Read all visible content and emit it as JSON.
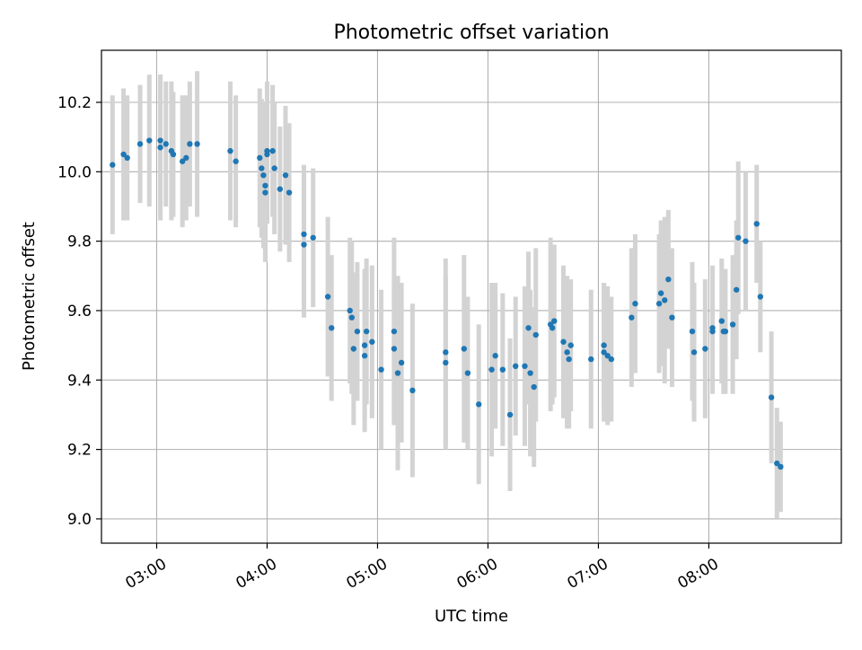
{
  "chart_data": {
    "type": "scatter",
    "title": "Photometric offset variation",
    "xlabel": "UTC time",
    "ylabel": "Photometric offset",
    "x_axis_kind": "time (HH:MM)",
    "xlim": [
      "02:30",
      "09:12"
    ],
    "ylim": [
      8.93,
      10.35
    ],
    "x_ticks": [
      "03:00",
      "04:00",
      "05:00",
      "06:00",
      "07:00",
      "08:00"
    ],
    "y_ticks": [
      "9.0",
      "9.2",
      "9.4",
      "9.6",
      "9.8",
      "10.0",
      "10.2"
    ],
    "grid": true,
    "legend": "none",
    "colors": {
      "point": "#1f77b4",
      "error_bar": "#d3d3d3",
      "grid": "#b0b0b0"
    },
    "series": [
      {
        "points": [
          {
            "x": "02:36",
            "y": 10.02,
            "err": 0.2
          },
          {
            "x": "02:42",
            "y": 10.05,
            "err": 0.19
          },
          {
            "x": "02:44",
            "y": 10.04,
            "err": 0.18
          },
          {
            "x": "02:51",
            "y": 10.08,
            "err": 0.17
          },
          {
            "x": "02:56",
            "y": 10.09,
            "err": 0.19
          },
          {
            "x": "03:02",
            "y": 10.07,
            "err": 0.21
          },
          {
            "x": "03:02",
            "y": 10.09,
            "err": 0.19
          },
          {
            "x": "03:05",
            "y": 10.08,
            "err": 0.18
          },
          {
            "x": "03:08",
            "y": 10.06,
            "err": 0.2
          },
          {
            "x": "03:09",
            "y": 10.05,
            "err": 0.18
          },
          {
            "x": "03:14",
            "y": 10.03,
            "err": 0.19
          },
          {
            "x": "03:16",
            "y": 10.04,
            "err": 0.18
          },
          {
            "x": "03:18",
            "y": 10.08,
            "err": 0.18
          },
          {
            "x": "03:22",
            "y": 10.08,
            "err": 0.21
          },
          {
            "x": "03:40",
            "y": 10.06,
            "err": 0.2
          },
          {
            "x": "03:43",
            "y": 10.03,
            "err": 0.19
          },
          {
            "x": "03:56",
            "y": 10.04,
            "err": 0.2
          },
          {
            "x": "03:57",
            "y": 10.01,
            "err": 0.2
          },
          {
            "x": "03:58",
            "y": 9.99,
            "err": 0.21
          },
          {
            "x": "03:59",
            "y": 9.94,
            "err": 0.2
          },
          {
            "x": "03:59",
            "y": 9.96,
            "err": 0.2
          },
          {
            "x": "04:00",
            "y": 10.05,
            "err": 0.2
          },
          {
            "x": "04:00",
            "y": 10.06,
            "err": 0.2
          },
          {
            "x": "04:03",
            "y": 10.06,
            "err": 0.19
          },
          {
            "x": "04:04",
            "y": 10.01,
            "err": 0.19
          },
          {
            "x": "04:07",
            "y": 9.95,
            "err": 0.18
          },
          {
            "x": "04:10",
            "y": 9.99,
            "err": 0.2
          },
          {
            "x": "04:12",
            "y": 9.94,
            "err": 0.2
          },
          {
            "x": "04:20",
            "y": 9.82,
            "err": 0.2
          },
          {
            "x": "04:20",
            "y": 9.79,
            "err": 0.21
          },
          {
            "x": "04:25",
            "y": 9.81,
            "err": 0.2
          },
          {
            "x": "04:33",
            "y": 9.64,
            "err": 0.23
          },
          {
            "x": "04:35",
            "y": 9.55,
            "err": 0.21
          },
          {
            "x": "04:45",
            "y": 9.6,
            "err": 0.21
          },
          {
            "x": "04:46",
            "y": 9.58,
            "err": 0.22
          },
          {
            "x": "04:47",
            "y": 9.49,
            "err": 0.22
          },
          {
            "x": "04:49",
            "y": 9.54,
            "err": 0.2
          },
          {
            "x": "04:53",
            "y": 9.47,
            "err": 0.22
          },
          {
            "x": "04:53",
            "y": 9.5,
            "err": 0.22
          },
          {
            "x": "04:54",
            "y": 9.54,
            "err": 0.21
          },
          {
            "x": "04:57",
            "y": 9.51,
            "err": 0.22
          },
          {
            "x": "05:02",
            "y": 9.43,
            "err": 0.23
          },
          {
            "x": "05:09",
            "y": 9.54,
            "err": 0.27
          },
          {
            "x": "05:09",
            "y": 9.49,
            "err": 0.21
          },
          {
            "x": "05:11",
            "y": 9.42,
            "err": 0.28
          },
          {
            "x": "05:13",
            "y": 9.45,
            "err": 0.23
          },
          {
            "x": "05:19",
            "y": 9.37,
            "err": 0.25
          },
          {
            "x": "05:37",
            "y": 9.48,
            "err": 0.27
          },
          {
            "x": "05:37",
            "y": 9.45,
            "err": 0.25
          },
          {
            "x": "05:47",
            "y": 9.49,
            "err": 0.27
          },
          {
            "x": "05:49",
            "y": 9.42,
            "err": 0.22
          },
          {
            "x": "05:55",
            "y": 9.33,
            "err": 0.23
          },
          {
            "x": "06:02",
            "y": 9.43,
            "err": 0.25
          },
          {
            "x": "06:04",
            "y": 9.47,
            "err": 0.21
          },
          {
            "x": "06:08",
            "y": 9.43,
            "err": 0.22
          },
          {
            "x": "06:12",
            "y": 9.3,
            "err": 0.22
          },
          {
            "x": "06:15",
            "y": 9.44,
            "err": 0.2
          },
          {
            "x": "06:20",
            "y": 9.44,
            "err": 0.23
          },
          {
            "x": "06:22",
            "y": 9.55,
            "err": 0.22
          },
          {
            "x": "06:23",
            "y": 9.42,
            "err": 0.24
          },
          {
            "x": "06:25",
            "y": 9.38,
            "err": 0.23
          },
          {
            "x": "06:26",
            "y": 9.53,
            "err": 0.25
          },
          {
            "x": "06:34",
            "y": 9.56,
            "err": 0.25
          },
          {
            "x": "06:35",
            "y": 9.55,
            "err": 0.22
          },
          {
            "x": "06:36",
            "y": 9.57,
            "err": 0.22
          },
          {
            "x": "06:41",
            "y": 9.51,
            "err": 0.22
          },
          {
            "x": "06:43",
            "y": 9.48,
            "err": 0.22
          },
          {
            "x": "06:44",
            "y": 9.46,
            "err": 0.2
          },
          {
            "x": "06:45",
            "y": 9.5,
            "err": 0.19
          },
          {
            "x": "06:56",
            "y": 9.46,
            "err": 0.2
          },
          {
            "x": "07:03",
            "y": 9.5,
            "err": 0.18
          },
          {
            "x": "07:03",
            "y": 9.48,
            "err": 0.2
          },
          {
            "x": "07:05",
            "y": 9.47,
            "err": 0.2
          },
          {
            "x": "07:07",
            "y": 9.46,
            "err": 0.18
          },
          {
            "x": "07:18",
            "y": 9.58,
            "err": 0.2
          },
          {
            "x": "07:20",
            "y": 9.62,
            "err": 0.2
          },
          {
            "x": "07:33",
            "y": 9.62,
            "err": 0.2
          },
          {
            "x": "07:34",
            "y": 9.65,
            "err": 0.21
          },
          {
            "x": "07:36",
            "y": 9.63,
            "err": 0.24
          },
          {
            "x": "07:38",
            "y": 9.69,
            "err": 0.2
          },
          {
            "x": "07:40",
            "y": 9.58,
            "err": 0.2
          },
          {
            "x": "07:51",
            "y": 9.54,
            "err": 0.2
          },
          {
            "x": "07:52",
            "y": 9.48,
            "err": 0.2
          },
          {
            "x": "07:58",
            "y": 9.49,
            "err": 0.2
          },
          {
            "x": "08:02",
            "y": 9.54,
            "err": 0.18
          },
          {
            "x": "08:02",
            "y": 9.55,
            "err": 0.18
          },
          {
            "x": "08:07",
            "y": 9.57,
            "err": 0.18
          },
          {
            "x": "08:08",
            "y": 9.54,
            "err": 0.18
          },
          {
            "x": "08:09",
            "y": 9.54,
            "err": 0.18
          },
          {
            "x": "08:13",
            "y": 9.56,
            "err": 0.2
          },
          {
            "x": "08:15",
            "y": 9.66,
            "err": 0.2
          },
          {
            "x": "08:16",
            "y": 9.81,
            "err": 0.22
          },
          {
            "x": "08:20",
            "y": 9.8,
            "err": 0.2
          },
          {
            "x": "08:26",
            "y": 9.85,
            "err": 0.17
          },
          {
            "x": "08:28",
            "y": 9.64,
            "err": 0.16
          },
          {
            "x": "08:34",
            "y": 9.35,
            "err": 0.19
          },
          {
            "x": "08:37",
            "y": 9.16,
            "err": 0.16
          },
          {
            "x": "08:39",
            "y": 9.15,
            "err": 0.13
          }
        ]
      }
    ]
  }
}
